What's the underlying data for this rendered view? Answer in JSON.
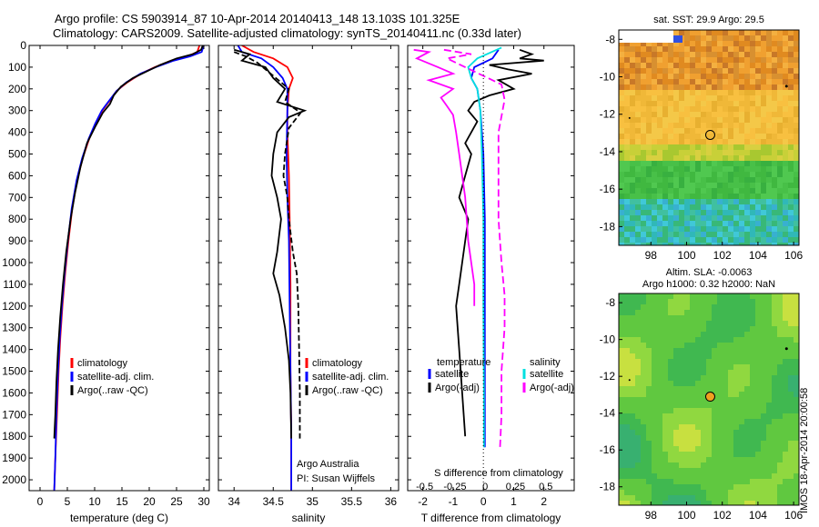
{
  "header": {
    "line1": "Argo profile: CS 5903914_87 10-Apr-2014 20140413_148 13.103S 101.325E",
    "line2": "Climatology: CARS2009. Satellite-adjusted climatology: synTS_20140411.nc (0.33d later)"
  },
  "chart_data": [
    {
      "type": "line",
      "id": "temperature",
      "xlabel": "temperature (deg C)",
      "ylabel": "",
      "xlim": [
        -2,
        31
      ],
      "ylim": [
        2050,
        0
      ],
      "xticks": [
        0,
        5,
        10,
        15,
        20,
        25,
        30
      ],
      "yticks": [
        0,
        100,
        200,
        300,
        400,
        500,
        600,
        700,
        800,
        900,
        1000,
        1100,
        1200,
        1300,
        1400,
        1500,
        1600,
        1700,
        1800,
        1900,
        2000
      ],
      "legend": [
        "climatology",
        "satellite-adj. clim.",
        "Argo(..raw -QC)"
      ],
      "series": [
        {
          "name": "climatology",
          "color": "#ff0000",
          "dash": "",
          "points": [
            [
              29.2,
              0
            ],
            [
              28.8,
              30
            ],
            [
              27,
              50
            ],
            [
              24,
              70
            ],
            [
              21,
              100
            ],
            [
              18.5,
              130
            ],
            [
              16,
              170
            ],
            [
              14,
              210
            ],
            [
              12.6,
              260
            ],
            [
              11.4,
              300
            ],
            [
              10.2,
              360
            ],
            [
              9,
              430
            ],
            [
              7.8,
              520
            ],
            [
              6.8,
              620
            ],
            [
              5.9,
              750
            ],
            [
              5.2,
              900
            ],
            [
              4.6,
              1050
            ],
            [
              4.1,
              1200
            ],
            [
              3.7,
              1350
            ],
            [
              3.4,
              1500
            ],
            [
              3.1,
              1700
            ],
            [
              2.8,
              1900
            ],
            [
              2.6,
              2050
            ]
          ]
        },
        {
          "name": "satellite-adj. clim.",
          "color": "#0000ff",
          "dash": "",
          "points": [
            [
              30.0,
              0
            ],
            [
              29.6,
              30
            ],
            [
              27.5,
              50
            ],
            [
              24.5,
              70
            ],
            [
              21.2,
              100
            ],
            [
              18.4,
              130
            ],
            [
              15.8,
              170
            ],
            [
              14,
              210
            ],
            [
              12.5,
              260
            ],
            [
              11.3,
              300
            ],
            [
              10.1,
              360
            ],
            [
              8.9,
              430
            ],
            [
              7.7,
              520
            ],
            [
              6.7,
              620
            ],
            [
              5.8,
              750
            ],
            [
              5.1,
              900
            ],
            [
              4.5,
              1050
            ],
            [
              4.0,
              1200
            ],
            [
              3.6,
              1350
            ],
            [
              3.3,
              1500
            ],
            [
              3.0,
              1700
            ],
            [
              2.8,
              1900
            ],
            [
              2.6,
              2050
            ]
          ]
        },
        {
          "name": "Argo(..raw -QC)",
          "color": "#000000",
          "dash": "",
          "points": [
            [
              29.8,
              0
            ],
            [
              29.5,
              20
            ],
            [
              28,
              40
            ],
            [
              25,
              60
            ],
            [
              22,
              90
            ],
            [
              19.5,
              120
            ],
            [
              17,
              150
            ],
            [
              14.8,
              190
            ],
            [
              13.5,
              230
            ],
            [
              12.8,
              270
            ],
            [
              11.5,
              310
            ],
            [
              10.2,
              370
            ],
            [
              8.6,
              450
            ],
            [
              7.4,
              560
            ],
            [
              6.4,
              680
            ],
            [
              5.6,
              800
            ],
            [
              4.8,
              950
            ],
            [
              4.2,
              1100
            ],
            [
              3.7,
              1250
            ],
            [
              3.3,
              1400
            ],
            [
              3.0,
              1550
            ],
            [
              2.8,
              1700
            ],
            [
              2.6,
              1810
            ]
          ]
        }
      ]
    },
    {
      "type": "line",
      "id": "salinity",
      "xlabel": "salinity",
      "ylabel": "",
      "xlim": [
        33.8,
        36.1
      ],
      "ylim": [
        2050,
        0
      ],
      "xticks": [
        34,
        34.5,
        35,
        35.5,
        36
      ],
      "legend": [
        "climatology",
        "satellite-adj. clim.",
        "Argo(..raw -QC)"
      ],
      "annotation": [
        "Argo Australia",
        "PI: Susan Wijffels"
      ],
      "series": [
        {
          "name": "climatology",
          "color": "#ff0000",
          "dash": "",
          "points": [
            [
              34.1,
              0
            ],
            [
              34.25,
              30
            ],
            [
              34.5,
              60
            ],
            [
              34.68,
              100
            ],
            [
              34.75,
              150
            ],
            [
              34.7,
              200
            ],
            [
              34.68,
              300
            ],
            [
              34.68,
              400
            ],
            [
              34.7,
              600
            ],
            [
              34.71,
              800
            ],
            [
              34.72,
              1100
            ],
            [
              34.72,
              1500
            ],
            [
              34.73,
              1800
            ],
            [
              34.73,
              2050
            ]
          ]
        },
        {
          "name": "satellite-adj. clim.",
          "color": "#0000ff",
          "dash": "",
          "points": [
            [
              34.05,
              0
            ],
            [
              34.1,
              30
            ],
            [
              34.35,
              60
            ],
            [
              34.5,
              100
            ],
            [
              34.62,
              150
            ],
            [
              34.68,
              200
            ],
            [
              34.68,
              300
            ],
            [
              34.67,
              500
            ],
            [
              34.68,
              700
            ],
            [
              34.7,
              900
            ],
            [
              34.71,
              1200
            ],
            [
              34.72,
              1500
            ],
            [
              34.73,
              1800
            ],
            [
              34.73,
              2050
            ]
          ]
        },
        {
          "name": "Argo(..raw -QC)",
          "color": "#000000",
          "dash": "",
          "points": [
            [
              34.0,
              20
            ],
            [
              34.2,
              40
            ],
            [
              34.1,
              70
            ],
            [
              34.4,
              100
            ],
            [
              34.5,
              150
            ],
            [
              34.65,
              200
            ],
            [
              34.55,
              260
            ],
            [
              34.9,
              300
            ],
            [
              34.7,
              330
            ],
            [
              34.55,
              400
            ],
            [
              34.5,
              500
            ],
            [
              34.48,
              600
            ],
            [
              34.55,
              700
            ],
            [
              34.6,
              800
            ],
            [
              34.55,
              950
            ],
            [
              34.5,
              1050
            ],
            [
              34.58,
              1150
            ],
            [
              34.65,
              1300
            ],
            [
              34.7,
              1450
            ],
            [
              34.72,
              1600
            ],
            [
              34.73,
              1810
            ]
          ]
        },
        {
          "name": "",
          "color": "#000000",
          "dash": "6,3",
          "points": [
            [
              34.0,
              30
            ],
            [
              34.15,
              50
            ],
            [
              34.3,
              80
            ],
            [
              34.5,
              140
            ],
            [
              34.7,
              200
            ],
            [
              34.65,
              260
            ],
            [
              34.85,
              310
            ],
            [
              34.7,
              380
            ],
            [
              34.65,
              500
            ],
            [
              34.63,
              600
            ],
            [
              34.68,
              700
            ],
            [
              34.7,
              800
            ],
            [
              34.75,
              950
            ],
            [
              34.8,
              1050
            ],
            [
              34.82,
              1200
            ],
            [
              34.83,
              1400
            ],
            [
              34.84,
              1600
            ],
            [
              34.84,
              1810
            ]
          ]
        }
      ]
    },
    {
      "type": "line",
      "id": "difference",
      "xlabel": "T difference from climatology",
      "xlabel_top": "S difference from climatology",
      "xlim": [
        -2.5,
        3
      ],
      "ylim": [
        2050,
        0
      ],
      "xticks": [
        -2,
        -1,
        0,
        1,
        2
      ],
      "xticks_top": [
        "-0.5",
        "-0.25",
        "0",
        "0.25",
        "0.5"
      ],
      "legend_left_title": "temperature",
      "legend_left": [
        "satellite",
        "Argo(-adj)"
      ],
      "legend_right_title": "salinity",
      "legend_right": [
        "satellite",
        "Argo(-adj)"
      ],
      "series": [
        {
          "name": "temperature satellite",
          "color": "#0000ff",
          "dash": "",
          "points": [
            [
              0.5,
              20
            ],
            [
              0.3,
              60
            ],
            [
              -0.3,
              100
            ],
            [
              -0.4,
              150
            ],
            [
              -0.2,
              200
            ],
            [
              -0.1,
              300
            ],
            [
              0,
              500
            ],
            [
              0.05,
              800
            ],
            [
              0.05,
              1200
            ],
            [
              0.05,
              1600
            ],
            [
              0.05,
              1850
            ]
          ]
        },
        {
          "name": "temperature Argo(-adj)",
          "color": "#000000",
          "dash": "",
          "points": [
            [
              1.2,
              20
            ],
            [
              1.6,
              40
            ],
            [
              1.2,
              60
            ],
            [
              2.0,
              70
            ],
            [
              0.2,
              90
            ],
            [
              0.8,
              110
            ],
            [
              1.6,
              130
            ],
            [
              0.5,
              160
            ],
            [
              1.0,
              200
            ],
            [
              0.2,
              230
            ],
            [
              -0.3,
              260
            ],
            [
              -0.5,
              300
            ],
            [
              -0.2,
              350
            ],
            [
              -0.6,
              450
            ],
            [
              -0.4,
              500
            ],
            [
              -0.6,
              600
            ],
            [
              -0.8,
              700
            ],
            [
              -0.5,
              800
            ],
            [
              -0.6,
              900
            ],
            [
              -0.7,
              1000
            ],
            [
              -0.8,
              1100
            ],
            [
              -0.9,
              1200
            ],
            [
              -0.8,
              1400
            ],
            [
              -0.7,
              1600
            ],
            [
              -0.6,
              1800
            ]
          ]
        },
        {
          "name": "salinity satellite",
          "color": "#00e0e0",
          "dash": "",
          "points": [
            [
              0.6,
              10
            ],
            [
              -0.2,
              60
            ],
            [
              -0.5,
              100
            ],
            [
              -0.4,
              150
            ],
            [
              -0.2,
              200
            ],
            [
              -0.1,
              300
            ],
            [
              -0.05,
              500
            ],
            [
              0,
              800
            ],
            [
              0,
              1200
            ],
            [
              0.02,
              1600
            ],
            [
              0.02,
              1850
            ]
          ]
        },
        {
          "name": "salinity Argo(-adj)",
          "color": "#ff00ff",
          "dash": "",
          "points": [
            [
              -2.3,
              20
            ],
            [
              -1.8,
              30
            ],
            [
              -2.2,
              60
            ],
            [
              -1.5,
              100
            ],
            [
              -1.0,
              130
            ],
            [
              -1.8,
              160
            ],
            [
              -1.0,
              200
            ],
            [
              -1.4,
              240
            ],
            [
              -1.2,
              280
            ],
            [
              -1.0,
              320
            ],
            [
              -0.9,
              400
            ],
            [
              -0.8,
              500
            ],
            [
              -0.6,
              700
            ],
            [
              -0.5,
              900
            ],
            [
              -0.3,
              1100
            ],
            [
              -0.3,
              1200
            ]
          ]
        },
        {
          "name": "",
          "color": "#ff00ff",
          "dash": "8,4",
          "points": [
            [
              -1.3,
              20
            ],
            [
              -0.4,
              40
            ],
            [
              -1.2,
              60
            ],
            [
              -0.6,
              100
            ],
            [
              0,
              140
            ],
            [
              0.6,
              180
            ],
            [
              0.7,
              250
            ],
            [
              0.5,
              400
            ],
            [
              0.5,
              600
            ],
            [
              0.5,
              800
            ],
            [
              0.6,
              1000
            ],
            [
              0.7,
              1150
            ],
            [
              0.7,
              1300
            ],
            [
              0.6,
              1500
            ],
            [
              0.6,
              1700
            ],
            [
              0.55,
              1850
            ]
          ]
        }
      ]
    },
    {
      "type": "heatmap",
      "id": "sst-map",
      "title": "sat. SST: 29.9 Argo: 29.5",
      "xlim": [
        96.2,
        106.3
      ],
      "ylim": [
        -19,
        -7.5
      ],
      "xticks": [
        98,
        100,
        102,
        104,
        106
      ],
      "yticks": [
        -8,
        -10,
        -12,
        -14,
        -16,
        -18
      ],
      "argo_location": [
        101.325,
        -13.103
      ],
      "argo_marker_color": "none"
    },
    {
      "type": "heatmap",
      "id": "sla-map",
      "title": "Altim. SLA: -0.0063",
      "subtitle": "Argo h1000: 0.32 h2000: NaN",
      "xlim": [
        96.2,
        106.3
      ],
      "ylim": [
        -19,
        -7.5
      ],
      "xticks": [
        98,
        100,
        102,
        104,
        106
      ],
      "yticks": [
        -8,
        -10,
        -12,
        -14,
        -16,
        -18
      ],
      "argo_location": [
        101.325,
        -13.103
      ],
      "argo_marker_color": "#f0a020"
    }
  ],
  "credit": "IMOS 18-Apr-2014 20:00:58"
}
